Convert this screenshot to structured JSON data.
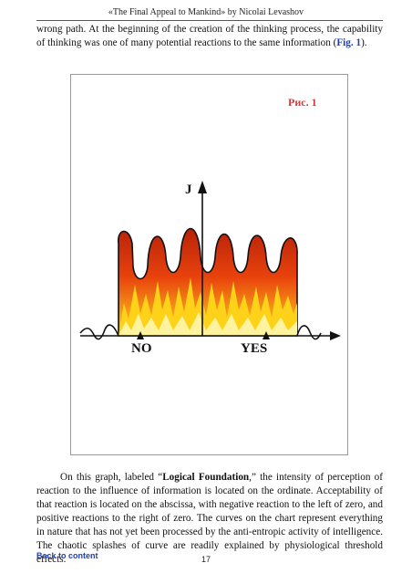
{
  "header": {
    "title": "«The Final Appeal to Mankind» by Nicolai Levashov"
  },
  "para1": {
    "text": "wrong path. At the beginning of the creation of the thinking process, the capability of thinking was one of many potential reactions to the same information (",
    "link": "Fig. 1",
    "end": ")."
  },
  "figure": {
    "label": "Рис. 1",
    "y_axis_label": "J",
    "left_label": "NO",
    "right_label": "YES",
    "colors": {
      "flame_outer": "#e8420c",
      "flame_inner": "#ffd21a",
      "curve": "#111111",
      "label": "#d23a3a"
    }
  },
  "para2": {
    "intro": "On this graph, labeled “",
    "bold": "Logical Foundation",
    "text": ",” the intensity of perception of reaction to the influence of information is located on the ordinate. Acceptability of that reaction is located on the abscissa, with negative reaction to the left of zero, and positive reactions to the right of zero. The curves on the chart represent everything in nature that has not yet been processed by the anti-entropic activity of intelligence. The chaotic splashes of curve are readily explained by physiological threshold effects."
  },
  "footer": {
    "back_link": "Back to content",
    "page_number": "17"
  }
}
